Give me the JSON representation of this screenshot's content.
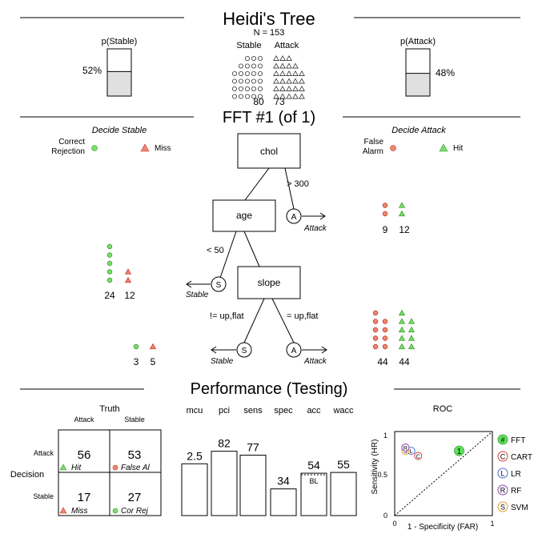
{
  "header": {
    "title": "Heidi's Tree",
    "n_label": "N = 153",
    "stable_label": "Stable",
    "attack_label": "Attack",
    "stable_count": "80",
    "attack_count": "73",
    "p_stable_label": "p(Stable)",
    "p_stable_value": "52%",
    "p_stable_fraction": 0.52,
    "p_attack_label": "p(Attack)",
    "p_attack_value": "48%",
    "p_attack_fraction": 0.48,
    "icon_rows": [
      3,
      4,
      5,
      5,
      5,
      5
    ]
  },
  "tree": {
    "title": "FFT #1 (of 1)",
    "left_heading": "Decide Stable",
    "right_heading": "Decide Attack",
    "legend": {
      "correct_rejection": "Correct\nRejection",
      "miss": "Miss",
      "false_alarm": "False\nAlarm",
      "hit": "Hit"
    },
    "nodes": {
      "chol": "chol",
      "age": "age",
      "slope": "slope"
    },
    "edges": {
      "chol_exit": "> 300",
      "age_exit": "< 50",
      "slope_left": "!= up,flat",
      "slope_right": "= up,flat"
    },
    "leaf_letters": {
      "stable": "S",
      "attack": "A"
    },
    "leaf_labels": {
      "stable": "Stable",
      "attack": "Attack"
    },
    "exits": {
      "chol_attack": {
        "left": 9,
        "right": 12,
        "left_label": "9",
        "right_label": "12"
      },
      "age_stable": {
        "left": 24,
        "right": 12,
        "left_label": "24",
        "right_label": "12"
      },
      "slope_stable": {
        "left": 3,
        "right": 5,
        "left_label": "3",
        "right_label": "5"
      },
      "slope_attack": {
        "left": 44,
        "right": 44,
        "left_label": "44",
        "right_label": "44"
      }
    }
  },
  "performance": {
    "title": "Performance (Testing)",
    "truth_label": "Truth",
    "truth_attack": "Attack",
    "truth_stable": "Stable",
    "decision_label": "Decision",
    "decision_attack": "Attack",
    "decision_stable": "Stable",
    "cells": {
      "hit": {
        "value": "56",
        "label": "Hit"
      },
      "false_alarm": {
        "value": "53",
        "label": "False Al"
      },
      "miss": {
        "value": "17",
        "label": "Miss"
      },
      "cor_rej": {
        "value": "27",
        "label": "Cor Rej"
      }
    },
    "bl_label": "BL"
  },
  "roc": {
    "title": "ROC",
    "xlabel": "1 - Specificity (FAR)",
    "ylabel": "Sensitivity (HR)",
    "ticks": [
      "0",
      "0.5",
      "1"
    ],
    "xticks": [
      "0",
      "1"
    ],
    "fft_point_label": "1",
    "legend": [
      {
        "symbol": "#",
        "name": "FFT"
      },
      {
        "symbol": "C",
        "name": "CART"
      },
      {
        "symbol": "L",
        "name": "LR"
      },
      {
        "symbol": "R",
        "name": "RF"
      },
      {
        "symbol": "S",
        "name": "SVM"
      }
    ]
  },
  "colors": {
    "green": "#7ddc6e",
    "green_stroke": "#3a9a2f",
    "red": "#f08670",
    "red_stroke": "#c0392b",
    "cart": "#e23b3b",
    "lr": "#4a6fd8",
    "rf": "#8e44ad",
    "svm": "#e39a2e",
    "fft": "#5ee35a"
  },
  "chart_data": [
    {
      "type": "bar",
      "title": "",
      "categories": [
        "mcu",
        "pci",
        "sens",
        "spec",
        "acc",
        "wacc"
      ],
      "values": [
        2.5,
        82,
        77,
        34,
        54,
        55
      ],
      "value_labels": [
        "2.5",
        "82",
        "77",
        "34",
        "54",
        "55"
      ],
      "baseline_acc": 52,
      "ylim": [
        0,
        100
      ]
    },
    {
      "type": "scatter",
      "title": "ROC",
      "xlabel": "1 - Specificity (FAR)",
      "ylabel": "Sensitivity (HR)",
      "xlim": [
        0,
        1
      ],
      "ylim": [
        0,
        1
      ],
      "series": [
        {
          "name": "FFT",
          "x": [
            0.66
          ],
          "y": [
            0.77
          ]
        },
        {
          "name": "CART",
          "x": [
            0.24
          ],
          "y": [
            0.71
          ]
        },
        {
          "name": "LR",
          "x": [
            0.17
          ],
          "y": [
            0.77
          ]
        },
        {
          "name": "RF",
          "x": [
            0.11
          ],
          "y": [
            0.81
          ]
        },
        {
          "name": "SVM",
          "x": [
            0.11
          ],
          "y": [
            0.77
          ]
        }
      ]
    }
  ]
}
